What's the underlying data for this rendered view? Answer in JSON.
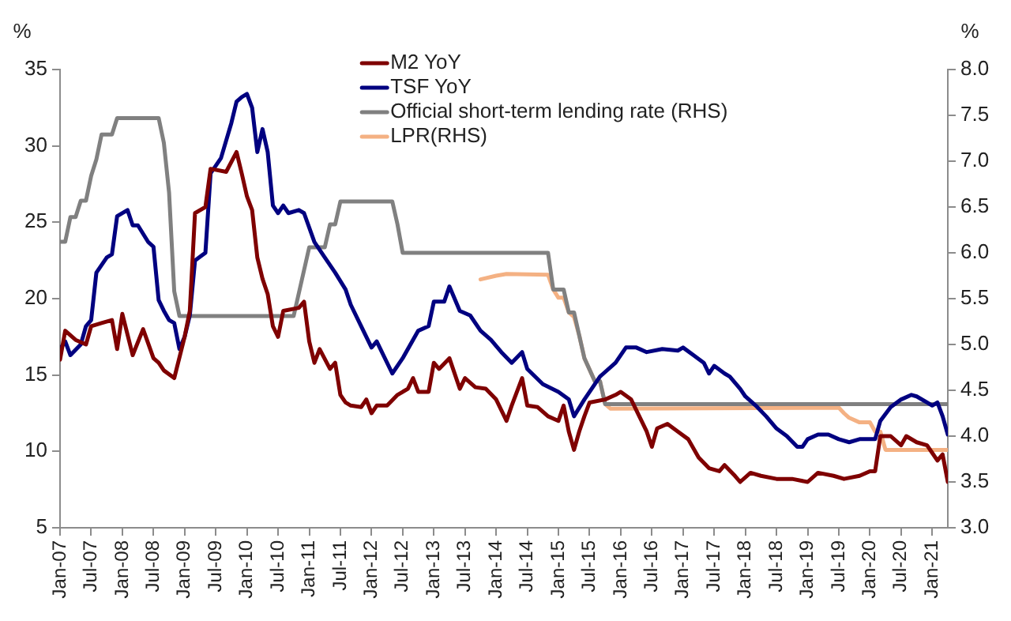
{
  "chart_data": {
    "type": "line",
    "ylabel": "%",
    "y2label": "%",
    "legend": "top",
    "marker": "none",
    "xlim": [
      "2007-01",
      "2021-04"
    ],
    "xticks": [
      {
        "value": "2007-01",
        "label": "Jan-07"
      },
      {
        "value": "2007-07",
        "label": "Jul-07"
      },
      {
        "value": "2008-01",
        "label": "Jan-08"
      },
      {
        "value": "2008-07",
        "label": "Jul-08"
      },
      {
        "value": "2009-01",
        "label": "Jan-09"
      },
      {
        "value": "2009-07",
        "label": "Jul-09"
      },
      {
        "value": "2010-01",
        "label": "Jan-10"
      },
      {
        "value": "2010-07",
        "label": "Jul-10"
      },
      {
        "value": "2011-01",
        "label": "Jan-11"
      },
      {
        "value": "2011-07",
        "label": "Jul-11"
      },
      {
        "value": "2012-01",
        "label": "Jan-12"
      },
      {
        "value": "2012-07",
        "label": "Jul-12"
      },
      {
        "value": "2013-01",
        "label": "Jan-13"
      },
      {
        "value": "2013-07",
        "label": "Jul-13"
      },
      {
        "value": "2014-01",
        "label": "Jan-14"
      },
      {
        "value": "2014-07",
        "label": "Jul-14"
      },
      {
        "value": "2015-01",
        "label": "Jan-15"
      },
      {
        "value": "2015-07",
        "label": "Jul-15"
      },
      {
        "value": "2016-01",
        "label": "Jan-16"
      },
      {
        "value": "2016-07",
        "label": "Jul-16"
      },
      {
        "value": "2017-01",
        "label": "Jan-17"
      },
      {
        "value": "2017-07",
        "label": "Jul-17"
      },
      {
        "value": "2018-01",
        "label": "Jan-18"
      },
      {
        "value": "2018-07",
        "label": "Jul-18"
      },
      {
        "value": "2019-01",
        "label": "Jan-19"
      },
      {
        "value": "2019-07",
        "label": "Jul-19"
      },
      {
        "value": "2020-01",
        "label": "Jan-20"
      },
      {
        "value": "2020-07",
        "label": "Jul-20"
      },
      {
        "value": "2021-01",
        "label": "Jan-21"
      }
    ],
    "ylim": [
      5,
      35
    ],
    "yticks": [
      5,
      10,
      15,
      20,
      25,
      30,
      35
    ],
    "y2lim": [
      3,
      8
    ],
    "y2ticks": [
      {
        "value": 3,
        "label": "3.0"
      },
      {
        "value": 3.5,
        "label": "3.5"
      },
      {
        "value": 4,
        "label": "4.0"
      },
      {
        "value": 4.5,
        "label": "4.5"
      },
      {
        "value": 5,
        "label": "5.0"
      },
      {
        "value": 5.5,
        "label": "5.5"
      },
      {
        "value": 6,
        "label": "6.0"
      },
      {
        "value": 6.5,
        "label": "6.5"
      },
      {
        "value": 7,
        "label": "7.0"
      },
      {
        "value": 7.5,
        "label": "7.5"
      },
      {
        "value": 8,
        "label": "8.0"
      }
    ],
    "series": [
      {
        "name": "M2 YoY",
        "color": "#7f0000",
        "x": [
          "2007-01",
          "2007-02",
          "2007-04",
          "2007-06",
          "2007-07",
          "2007-09",
          "2007-11",
          "2007-12",
          "2008-01",
          "2008-03",
          "2008-05",
          "2008-07",
          "2008-08",
          "2008-09",
          "2008-11",
          "2009-01",
          "2009-02",
          "2009-03",
          "2009-05",
          "2009-06",
          "2009-09",
          "2009-11",
          "2009-12",
          "2010-01",
          "2010-02",
          "2010-03",
          "2010-04",
          "2010-05",
          "2010-06",
          "2010-07",
          "2010-08",
          "2010-11",
          "2010-12",
          "2011-01",
          "2011-02",
          "2011-03",
          "2011-05",
          "2011-06",
          "2011-07",
          "2011-08",
          "2011-09",
          "2011-11",
          "2011-12",
          "2012-01",
          "2012-02",
          "2012-04",
          "2012-06",
          "2012-08",
          "2012-09",
          "2012-10",
          "2012-12",
          "2013-01",
          "2013-02",
          "2013-04",
          "2013-06",
          "2013-07",
          "2013-09",
          "2013-11",
          "2014-01",
          "2014-03",
          "2014-04",
          "2014-06",
          "2014-07",
          "2014-09",
          "2014-11",
          "2015-01",
          "2015-02",
          "2015-03",
          "2015-04",
          "2015-05",
          "2015-06",
          "2015-07",
          "2015-10",
          "2015-12",
          "2016-01",
          "2016-03",
          "2016-04",
          "2016-06",
          "2016-07",
          "2016-08",
          "2016-10",
          "2016-12",
          "2017-02",
          "2017-04",
          "2017-06",
          "2017-08",
          "2017-09",
          "2017-11",
          "2017-12",
          "2018-02",
          "2018-04",
          "2018-07",
          "2018-10",
          "2019-01",
          "2019-03",
          "2019-06",
          "2019-08",
          "2019-11",
          "2020-01",
          "2020-02",
          "2020-03",
          "2020-05",
          "2020-07",
          "2020-08",
          "2020-10",
          "2020-12",
          "2021-01",
          "2021-02",
          "2021-03",
          "2021-04"
        ],
        "values": [
          16.0,
          17.9,
          17.3,
          17.0,
          18.2,
          18.4,
          18.6,
          16.7,
          19.0,
          16.3,
          18.0,
          16.1,
          15.8,
          15.3,
          14.8,
          17.5,
          19.2,
          25.6,
          26.0,
          28.5,
          28.3,
          29.6,
          28.2,
          26.7,
          25.8,
          22.7,
          21.3,
          20.3,
          18.2,
          17.5,
          19.2,
          19.4,
          19.8,
          17.2,
          15.8,
          16.7,
          15.4,
          15.8,
          13.7,
          13.2,
          13.0,
          12.9,
          13.4,
          12.5,
          13.0,
          13.0,
          13.7,
          14.1,
          14.8,
          13.9,
          13.9,
          15.8,
          15.4,
          16.1,
          14.1,
          14.8,
          14.2,
          14.1,
          13.4,
          12.0,
          13.0,
          14.8,
          13.0,
          12.9,
          12.3,
          12.0,
          13.0,
          11.3,
          10.1,
          11.3,
          12.3,
          13.2,
          13.4,
          13.7,
          13.9,
          13.4,
          12.7,
          11.3,
          10.3,
          11.5,
          11.8,
          11.3,
          10.8,
          9.6,
          8.9,
          8.7,
          9.1,
          8.4,
          8.0,
          8.6,
          8.4,
          8.2,
          8.2,
          8.0,
          8.6,
          8.4,
          8.2,
          8.4,
          8.7,
          8.7,
          11.0,
          11.0,
          10.4,
          11.0,
          10.6,
          10.4,
          9.9,
          9.4,
          9.8,
          8.0
        ]
      },
      {
        "name": "TSF YoY",
        "color": "#000080",
        "x": [
          "2007-01",
          "2007-02",
          "2007-03",
          "2007-05",
          "2007-06",
          "2007-07",
          "2007-08",
          "2007-10",
          "2007-11",
          "2007-12",
          "2008-02",
          "2008-03",
          "2008-04",
          "2008-06",
          "2008-07",
          "2008-08",
          "2008-09",
          "2008-10",
          "2008-11",
          "2008-12",
          "2009-01",
          "2009-02",
          "2009-03",
          "2009-05",
          "2009-06",
          "2009-08",
          "2009-10",
          "2009-11",
          "2009-12",
          "2010-01",
          "2010-02",
          "2010-03",
          "2010-04",
          "2010-05",
          "2010-06",
          "2010-07",
          "2010-08",
          "2010-09",
          "2010-11",
          "2010-12",
          "2011-02",
          "2011-04",
          "2011-06",
          "2011-08",
          "2011-09",
          "2011-11",
          "2012-01",
          "2012-02",
          "2012-05",
          "2012-07",
          "2012-10",
          "2012-12",
          "2013-01",
          "2013-03",
          "2013-04",
          "2013-06",
          "2013-08",
          "2013-10",
          "2013-12",
          "2014-02",
          "2014-04",
          "2014-06",
          "2014-07",
          "2014-10",
          "2015-01",
          "2015-03",
          "2015-04",
          "2015-06",
          "2015-09",
          "2015-12",
          "2016-02",
          "2016-04",
          "2016-06",
          "2016-09",
          "2016-12",
          "2017-01",
          "2017-03",
          "2017-05",
          "2017-06",
          "2017-07",
          "2017-09",
          "2017-10",
          "2017-12",
          "2018-01",
          "2018-03",
          "2018-05",
          "2018-07",
          "2018-09",
          "2018-11",
          "2018-12",
          "2019-01",
          "2019-03",
          "2019-05",
          "2019-07",
          "2019-09",
          "2019-11",
          "2020-02",
          "2020-03",
          "2020-05",
          "2020-07",
          "2020-09",
          "2020-10",
          "2020-12",
          "2021-01",
          "2021-02",
          "2021-03",
          "2021-04"
        ],
        "values": [
          16.7,
          17.2,
          16.3,
          17.0,
          18.2,
          18.6,
          21.7,
          22.7,
          22.9,
          25.4,
          25.8,
          24.8,
          24.8,
          23.7,
          23.4,
          19.9,
          19.2,
          18.6,
          18.4,
          16.7,
          17.5,
          18.9,
          22.5,
          23.0,
          28.2,
          29.2,
          31.5,
          32.9,
          33.2,
          33.4,
          32.5,
          29.6,
          31.1,
          29.6,
          26.1,
          25.6,
          26.1,
          25.6,
          25.8,
          25.6,
          23.7,
          22.7,
          21.7,
          20.6,
          19.6,
          18.2,
          16.8,
          17.2,
          15.1,
          16.1,
          17.9,
          18.2,
          19.8,
          19.8,
          20.8,
          19.2,
          18.9,
          17.9,
          17.3,
          16.5,
          15.8,
          16.5,
          15.4,
          14.4,
          13.9,
          13.4,
          12.3,
          13.4,
          14.9,
          15.8,
          16.8,
          16.8,
          16.5,
          16.7,
          16.6,
          16.8,
          16.3,
          15.8,
          15.1,
          15.6,
          15.1,
          14.9,
          14.1,
          13.6,
          13.0,
          12.3,
          11.5,
          11.0,
          10.3,
          10.3,
          10.8,
          11.1,
          11.1,
          10.8,
          10.6,
          10.8,
          10.8,
          12.0,
          12.9,
          13.4,
          13.7,
          13.6,
          13.2,
          13.0,
          13.2,
          12.3,
          11.1
        ]
      },
      {
        "name": "Official short-term lending rate (RHS)",
        "color": "#808080",
        "axis": "y2",
        "x": [
          "2007-01",
          "2007-02",
          "2007-03",
          "2007-04",
          "2007-05",
          "2007-06",
          "2007-07",
          "2007-08",
          "2007-09",
          "2007-11",
          "2007-12",
          "2008-08",
          "2008-09",
          "2008-10",
          "2008-11",
          "2008-12",
          "2010-10",
          "2010-11",
          "2010-12",
          "2011-01",
          "2011-04",
          "2011-05",
          "2011-06",
          "2011-07",
          "2012-05",
          "2012-06",
          "2012-07",
          "2014-11",
          "2014-12",
          "2015-02",
          "2015-03",
          "2015-04",
          "2015-05",
          "2015-06",
          "2015-08",
          "2015-09",
          "2015-10",
          "2021-04"
        ],
        "values": [
          6.12,
          6.12,
          6.39,
          6.39,
          6.57,
          6.57,
          6.84,
          7.02,
          7.29,
          7.29,
          7.47,
          7.47,
          7.2,
          6.66,
          5.58,
          5.31,
          5.31,
          5.56,
          5.81,
          6.06,
          6.06,
          6.31,
          6.31,
          6.56,
          6.56,
          6.31,
          6.0,
          6.0,
          5.6,
          5.6,
          5.35,
          5.35,
          5.1,
          4.85,
          4.6,
          4.6,
          4.35,
          4.35
        ]
      },
      {
        "name": "LPR(RHS)",
        "color": "#f4b183",
        "axis": "y2",
        "x": [
          "2013-10",
          "2014-01",
          "2014-03",
          "2014-11",
          "2014-12",
          "2015-01",
          "2015-02",
          "2015-03",
          "2015-04",
          "2015-05",
          "2015-06",
          "2015-08",
          "2015-09",
          "2015-10",
          "2015-11",
          "2019-07",
          "2019-08",
          "2019-09",
          "2019-11",
          "2020-01",
          "2020-02",
          "2020-03",
          "2020-04",
          "2021-04"
        ],
        "values": [
          5.71,
          5.75,
          5.77,
          5.76,
          5.6,
          5.51,
          5.51,
          5.35,
          5.3,
          5.1,
          4.85,
          4.6,
          4.6,
          4.35,
          4.3,
          4.31,
          4.25,
          4.2,
          4.15,
          4.15,
          4.05,
          4.05,
          3.85,
          3.85
        ]
      }
    ]
  }
}
